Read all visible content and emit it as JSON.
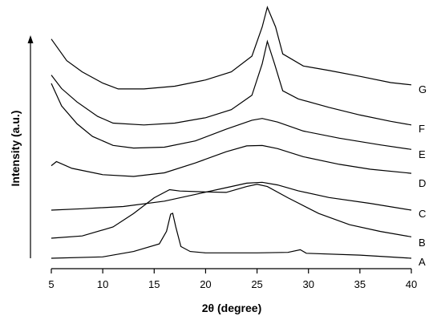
{
  "chart_data": {
    "type": "line",
    "xlabel": "2θ (degree)",
    "ylabel": "Intensity (a.u.)",
    "xlim": [
      5,
      40
    ],
    "xticks": [
      5,
      10,
      15,
      20,
      25,
      30,
      35,
      40
    ],
    "yticks_shown": false,
    "grid": false,
    "legend": "none",
    "series": [
      {
        "name": "A",
        "points": [
          [
            5,
            0
          ],
          [
            10,
            0.3
          ],
          [
            13,
            1.5
          ],
          [
            15.5,
            3.2
          ],
          [
            16.2,
            6
          ],
          [
            16.6,
            9.8
          ],
          [
            16.8,
            10
          ],
          [
            17.1,
            7
          ],
          [
            17.6,
            2.6
          ],
          [
            18.5,
            1.5
          ],
          [
            20,
            1.2
          ],
          [
            25,
            1.2
          ],
          [
            28,
            1.3
          ],
          [
            29.2,
            1.9
          ],
          [
            29.8,
            1.1
          ],
          [
            35,
            0.7
          ],
          [
            40,
            0
          ]
        ]
      },
      {
        "name": "B",
        "points": [
          [
            5,
            0
          ],
          [
            8,
            0.5
          ],
          [
            11,
            2.5
          ],
          [
            13,
            5.5
          ],
          [
            15,
            9
          ],
          [
            16.5,
            10.8
          ],
          [
            17.5,
            10.5
          ],
          [
            20,
            10.3
          ],
          [
            22,
            10.2
          ],
          [
            24,
            11.5
          ],
          [
            25,
            12
          ],
          [
            26,
            11.5
          ],
          [
            28,
            9
          ],
          [
            31,
            5.5
          ],
          [
            34,
            3
          ],
          [
            37,
            1.5
          ],
          [
            40,
            0.3
          ]
        ]
      },
      {
        "name": "C",
        "points": [
          [
            5,
            0
          ],
          [
            8,
            0.3
          ],
          [
            12,
            0.8
          ],
          [
            16,
            2
          ],
          [
            19,
            3.5
          ],
          [
            22,
            5
          ],
          [
            24,
            6
          ],
          [
            25.5,
            6.2
          ],
          [
            27,
            5.6
          ],
          [
            29,
            4.3
          ],
          [
            32,
            2.8
          ],
          [
            36,
            1.5
          ],
          [
            40,
            0
          ]
        ]
      },
      {
        "name": "D",
        "points": [
          [
            5,
            2.4
          ],
          [
            5.5,
            3.3
          ],
          [
            7,
            1.8
          ],
          [
            10,
            0.4
          ],
          [
            13,
            0
          ],
          [
            16,
            0.8
          ],
          [
            19,
            3
          ],
          [
            22,
            5.5
          ],
          [
            24,
            6.8
          ],
          [
            25.5,
            6.9
          ],
          [
            27,
            6.2
          ],
          [
            29.5,
            4.4
          ],
          [
            33,
            2.7
          ],
          [
            36,
            1.6
          ],
          [
            40,
            0.7
          ]
        ]
      },
      {
        "name": "E",
        "points": [
          [
            5,
            15
          ],
          [
            6,
            10
          ],
          [
            7.5,
            6
          ],
          [
            9,
            3.2
          ],
          [
            11,
            1.2
          ],
          [
            13,
            0.6
          ],
          [
            16,
            0.8
          ],
          [
            19,
            2.2
          ],
          [
            22,
            4.8
          ],
          [
            24.5,
            6.8
          ],
          [
            25.5,
            7.2
          ],
          [
            27,
            6.4
          ],
          [
            29.5,
            4.4
          ],
          [
            33,
            2.8
          ],
          [
            37,
            1.3
          ],
          [
            40,
            0.3
          ]
        ]
      },
      {
        "name": "F",
        "points": [
          [
            5,
            11.5
          ],
          [
            6,
            8.5
          ],
          [
            7.5,
            5.5
          ],
          [
            9.5,
            2.3
          ],
          [
            11,
            0.8
          ],
          [
            14,
            0.4
          ],
          [
            17,
            0.8
          ],
          [
            20,
            2
          ],
          [
            22.5,
            3.8
          ],
          [
            24.5,
            7
          ],
          [
            25.5,
            14
          ],
          [
            26,
            19
          ],
          [
            26.7,
            14
          ],
          [
            27.5,
            8
          ],
          [
            29,
            6.2
          ],
          [
            32,
            4.3
          ],
          [
            35,
            2.6
          ],
          [
            38,
            1.2
          ],
          [
            40,
            0.4
          ]
        ]
      },
      {
        "name": "G",
        "points": [
          [
            5,
            11.3
          ],
          [
            6.5,
            6.5
          ],
          [
            8,
            4
          ],
          [
            10,
            1.5
          ],
          [
            11.5,
            0.2
          ],
          [
            14,
            0.2
          ],
          [
            17,
            0.8
          ],
          [
            20,
            2.2
          ],
          [
            22.5,
            4
          ],
          [
            24.5,
            7.5
          ],
          [
            25.5,
            14
          ],
          [
            26,
            18.4
          ],
          [
            26.8,
            14
          ],
          [
            27.5,
            8
          ],
          [
            29.5,
            5.3
          ],
          [
            32,
            4.3
          ],
          [
            35,
            3
          ],
          [
            38,
            1.6
          ],
          [
            40,
            1.1
          ]
        ]
      }
    ]
  }
}
